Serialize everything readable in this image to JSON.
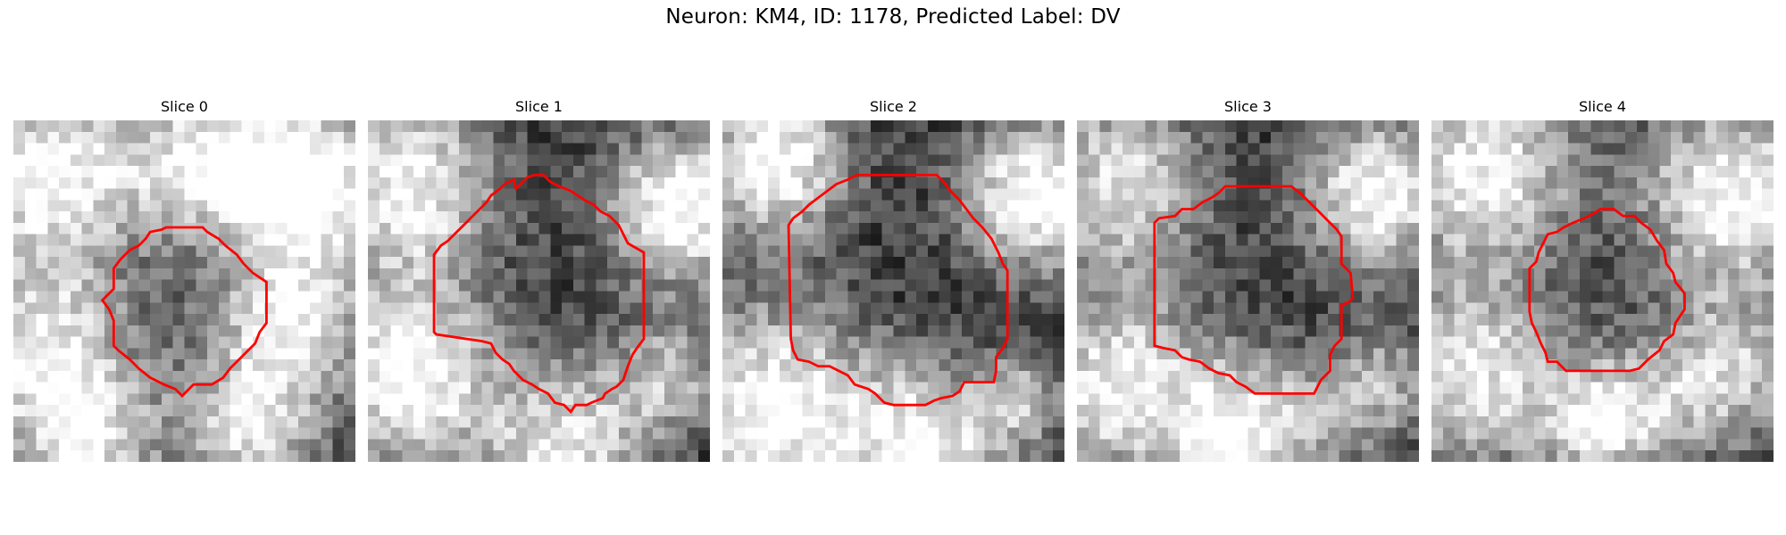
{
  "figure": {
    "suptitle": "Neuron: KM4, ID: 1178, Predicted Label: DV"
  },
  "panels": [
    {
      "title": "Slice 0"
    },
    {
      "title": "Slice 1"
    },
    {
      "title": "Slice 2"
    },
    {
      "title": "Slice 3"
    },
    {
      "title": "Slice 4"
    }
  ],
  "colors": {
    "contour": "#ff0000",
    "background": "#ffffff"
  }
}
